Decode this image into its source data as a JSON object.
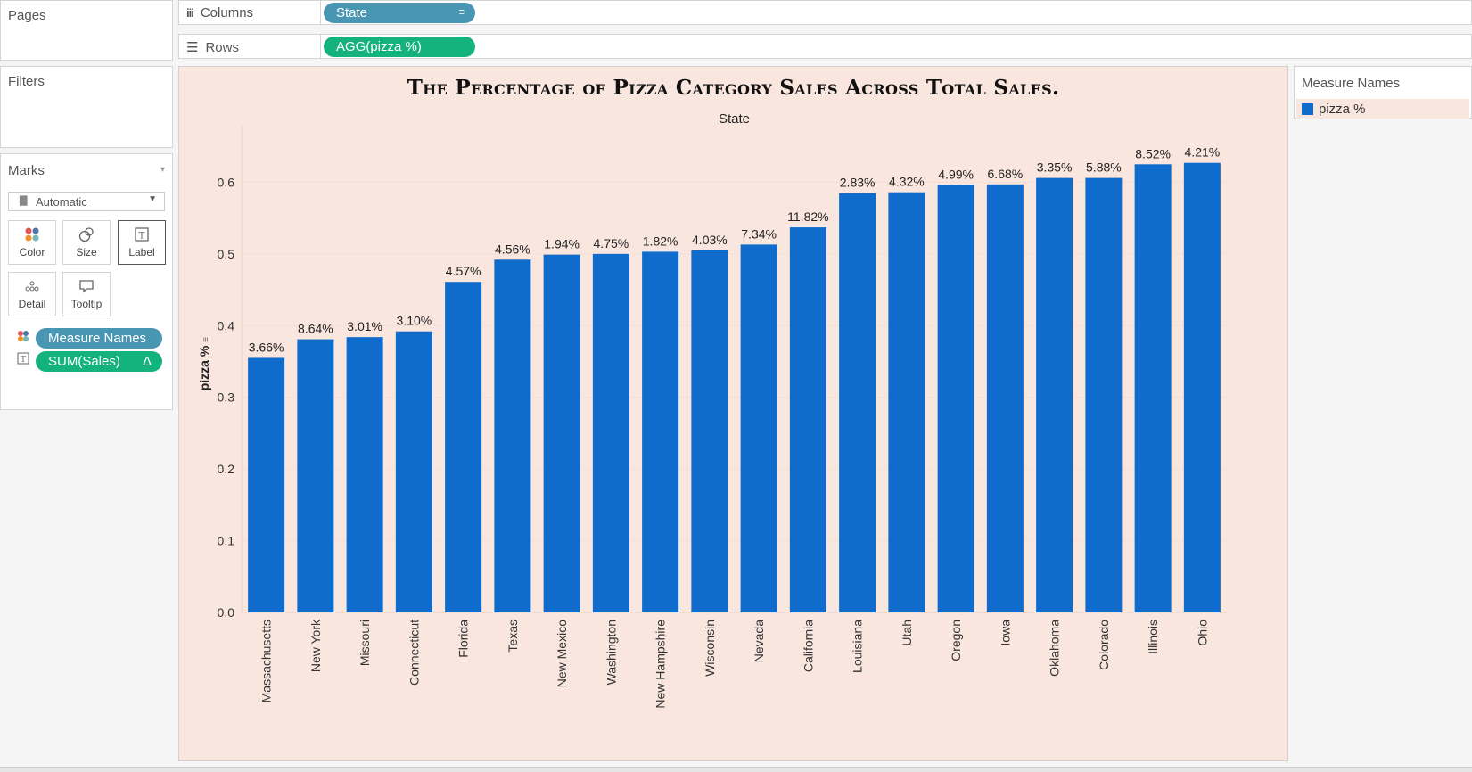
{
  "pages_panel": {
    "title": "Pages"
  },
  "filters_panel": {
    "title": "Filters"
  },
  "columns_shelf": {
    "label": "Columns",
    "pill": "State",
    "icon": "columns-icon"
  },
  "rows_shelf": {
    "label": "Rows",
    "pill": "AGG(pizza %)",
    "icon": "rows-icon"
  },
  "marks_panel": {
    "title": "Marks",
    "mark_type": "Automatic",
    "buttons": {
      "color": "Color",
      "size": "Size",
      "label": "Label",
      "detail": "Detail",
      "tooltip": "Tooltip"
    },
    "fields": [
      {
        "label": "Measure Names",
        "color": "#4996b2"
      },
      {
        "label": "SUM(Sales)",
        "suffix": "Δ",
        "color": "#14b37d"
      }
    ]
  },
  "legend": {
    "title": "Measure Names",
    "item": "pizza %",
    "color": "#0f6bcc"
  },
  "chart_data": {
    "type": "bar",
    "title": "The Percentage of Pizza Category Sales Across Total Sales.",
    "header": "State",
    "ylabel": "pizza %",
    "ylim": [
      0,
      0.66
    ],
    "yticks": [
      "0.0",
      "0.1",
      "0.2",
      "0.3",
      "0.4",
      "0.5",
      "0.6"
    ],
    "categories": [
      "Massachusetts",
      "New York",
      "Missouri",
      "Connecticut",
      "Florida",
      "Texas",
      "New Mexico",
      "Washington",
      "New Hampshire",
      "Wisconsin",
      "Nevada",
      "California",
      "Louisiana",
      "Utah",
      "Oregon",
      "Iowa",
      "Oklahoma",
      "Colorado",
      "Illinois",
      "Ohio"
    ],
    "values": [
      0.355,
      0.381,
      0.384,
      0.392,
      0.461,
      0.492,
      0.499,
      0.5,
      0.503,
      0.505,
      0.513,
      0.537,
      0.585,
      0.586,
      0.596,
      0.597,
      0.606,
      0.606,
      0.625,
      0.627
    ],
    "data_labels": [
      "3.66%",
      "8.64%",
      "3.01%",
      "3.10%",
      "4.57%",
      "4.56%",
      "1.94%",
      "4.75%",
      "1.82%",
      "4.03%",
      "7.34%",
      "11.82%",
      "2.83%",
      "4.32%",
      "4.99%",
      "6.68%",
      "3.35%",
      "5.88%",
      "8.52%",
      "4.21%"
    ],
    "bar_color": "#0f6bcc",
    "background": "#f9e6de",
    "grid": true
  }
}
